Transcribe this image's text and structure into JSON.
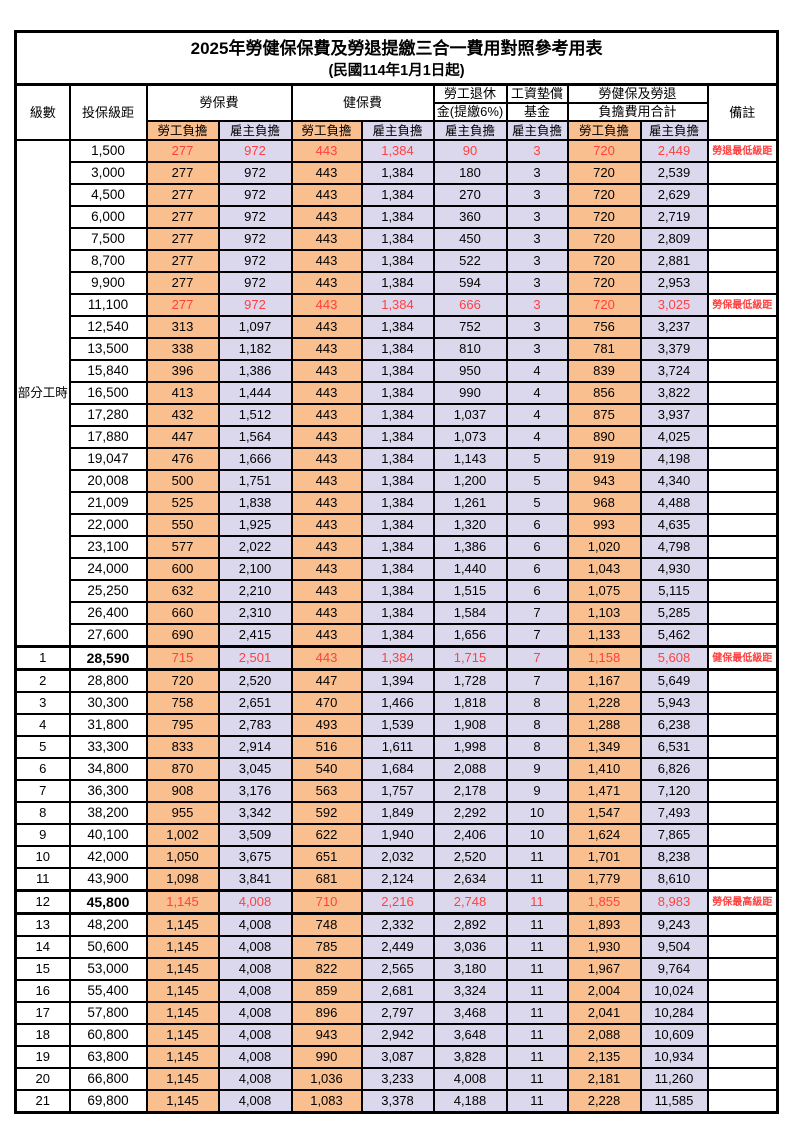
{
  "title": "2025年勞健保保費及勞退提繳三合一費用對照參考用表",
  "subtitle": "(民國114年1月1日起)",
  "header": {
    "level": "級數",
    "grade": "投保級距",
    "labor_ins": "勞保費",
    "health_ins": "健保費",
    "pension_line1": "勞工退休",
    "pension_line2": "金(提繳6%)",
    "wage_fund_line1": "工資墊償",
    "wage_fund_line2": "基金",
    "total_line1": "勞健保及勞退",
    "total_line2": "負擔費用合計",
    "note": "備註",
    "employee": "勞工負擔",
    "employer": "雇主負擔"
  },
  "colors": {
    "employee_bg": "#FABF8F",
    "employer_bg": "#DBD8EE",
    "highlight_text": "#FF4040",
    "note_text": "#FF4040",
    "border": "#000000"
  },
  "part_time_label": "部分工時",
  "rows": [
    {
      "level": "部分工時",
      "level_rowspan": 23,
      "grade": "1,500",
      "cells": [
        "277",
        "972",
        "443",
        "1,384",
        "90",
        "3",
        "720",
        "2,449"
      ],
      "note": "勞退最低級距",
      "red": true
    },
    {
      "grade": "3,000",
      "cells": [
        "277",
        "972",
        "443",
        "1,384",
        "180",
        "3",
        "720",
        "2,539"
      ],
      "note": ""
    },
    {
      "grade": "4,500",
      "cells": [
        "277",
        "972",
        "443",
        "1,384",
        "270",
        "3",
        "720",
        "2,629"
      ],
      "note": ""
    },
    {
      "grade": "6,000",
      "cells": [
        "277",
        "972",
        "443",
        "1,384",
        "360",
        "3",
        "720",
        "2,719"
      ],
      "note": ""
    },
    {
      "grade": "7,500",
      "cells": [
        "277",
        "972",
        "443",
        "1,384",
        "450",
        "3",
        "720",
        "2,809"
      ],
      "note": ""
    },
    {
      "grade": "8,700",
      "cells": [
        "277",
        "972",
        "443",
        "1,384",
        "522",
        "3",
        "720",
        "2,881"
      ],
      "note": ""
    },
    {
      "grade": "9,900",
      "cells": [
        "277",
        "972",
        "443",
        "1,384",
        "594",
        "3",
        "720",
        "2,953"
      ],
      "note": ""
    },
    {
      "grade": "11,100",
      "cells": [
        "277",
        "972",
        "443",
        "1,384",
        "666",
        "3",
        "720",
        "3,025"
      ],
      "note": "勞保最低級距",
      "red": true
    },
    {
      "grade": "12,540",
      "cells": [
        "313",
        "1,097",
        "443",
        "1,384",
        "752",
        "3",
        "756",
        "3,237"
      ],
      "note": ""
    },
    {
      "grade": "13,500",
      "cells": [
        "338",
        "1,182",
        "443",
        "1,384",
        "810",
        "3",
        "781",
        "3,379"
      ],
      "note": ""
    },
    {
      "grade": "15,840",
      "cells": [
        "396",
        "1,386",
        "443",
        "1,384",
        "950",
        "4",
        "839",
        "3,724"
      ],
      "note": ""
    },
    {
      "grade": "16,500",
      "cells": [
        "413",
        "1,444",
        "443",
        "1,384",
        "990",
        "4",
        "856",
        "3,822"
      ],
      "note": ""
    },
    {
      "grade": "17,280",
      "cells": [
        "432",
        "1,512",
        "443",
        "1,384",
        "1,037",
        "4",
        "875",
        "3,937"
      ],
      "note": ""
    },
    {
      "grade": "17,880",
      "cells": [
        "447",
        "1,564",
        "443",
        "1,384",
        "1,073",
        "4",
        "890",
        "4,025"
      ],
      "note": ""
    },
    {
      "grade": "19,047",
      "cells": [
        "476",
        "1,666",
        "443",
        "1,384",
        "1,143",
        "5",
        "919",
        "4,198"
      ],
      "note": ""
    },
    {
      "grade": "20,008",
      "cells": [
        "500",
        "1,751",
        "443",
        "1,384",
        "1,200",
        "5",
        "943",
        "4,340"
      ],
      "note": ""
    },
    {
      "grade": "21,009",
      "cells": [
        "525",
        "1,838",
        "443",
        "1,384",
        "1,261",
        "5",
        "968",
        "4,488"
      ],
      "note": ""
    },
    {
      "grade": "22,000",
      "cells": [
        "550",
        "1,925",
        "443",
        "1,384",
        "1,320",
        "6",
        "993",
        "4,635"
      ],
      "note": ""
    },
    {
      "grade": "23,100",
      "cells": [
        "577",
        "2,022",
        "443",
        "1,384",
        "1,386",
        "6",
        "1,020",
        "4,798"
      ],
      "note": ""
    },
    {
      "grade": "24,000",
      "cells": [
        "600",
        "2,100",
        "443",
        "1,384",
        "1,440",
        "6",
        "1,043",
        "4,930"
      ],
      "note": ""
    },
    {
      "grade": "25,250",
      "cells": [
        "632",
        "2,210",
        "443",
        "1,384",
        "1,515",
        "6",
        "1,075",
        "5,115"
      ],
      "note": ""
    },
    {
      "grade": "26,400",
      "cells": [
        "660",
        "2,310",
        "443",
        "1,384",
        "1,584",
        "7",
        "1,103",
        "5,285"
      ],
      "note": ""
    },
    {
      "grade": "27,600",
      "cells": [
        "690",
        "2,415",
        "443",
        "1,384",
        "1,656",
        "7",
        "1,133",
        "5,462"
      ],
      "note": ""
    },
    {
      "level": "1",
      "grade": "28,590",
      "cells": [
        "715",
        "2,501",
        "443",
        "1,384",
        "1,715",
        "7",
        "1,158",
        "5,608"
      ],
      "note": "健保最低級距",
      "red": true,
      "thick": true,
      "bold_grade": true
    },
    {
      "level": "2",
      "grade": "28,800",
      "cells": [
        "720",
        "2,520",
        "447",
        "1,394",
        "1,728",
        "7",
        "1,167",
        "5,649"
      ],
      "note": ""
    },
    {
      "level": "3",
      "grade": "30,300",
      "cells": [
        "758",
        "2,651",
        "470",
        "1,466",
        "1,818",
        "8",
        "1,228",
        "5,943"
      ],
      "note": ""
    },
    {
      "level": "4",
      "grade": "31,800",
      "cells": [
        "795",
        "2,783",
        "493",
        "1,539",
        "1,908",
        "8",
        "1,288",
        "6,238"
      ],
      "note": ""
    },
    {
      "level": "5",
      "grade": "33,300",
      "cells": [
        "833",
        "2,914",
        "516",
        "1,611",
        "1,998",
        "8",
        "1,349",
        "6,531"
      ],
      "note": ""
    },
    {
      "level": "6",
      "grade": "34,800",
      "cells": [
        "870",
        "3,045",
        "540",
        "1,684",
        "2,088",
        "9",
        "1,410",
        "6,826"
      ],
      "note": ""
    },
    {
      "level": "7",
      "grade": "36,300",
      "cells": [
        "908",
        "3,176",
        "563",
        "1,757",
        "2,178",
        "9",
        "1,471",
        "7,120"
      ],
      "note": ""
    },
    {
      "level": "8",
      "grade": "38,200",
      "cells": [
        "955",
        "3,342",
        "592",
        "1,849",
        "2,292",
        "10",
        "1,547",
        "7,493"
      ],
      "note": ""
    },
    {
      "level": "9",
      "grade": "40,100",
      "cells": [
        "1,002",
        "3,509",
        "622",
        "1,940",
        "2,406",
        "10",
        "1,624",
        "7,865"
      ],
      "note": ""
    },
    {
      "level": "10",
      "grade": "42,000",
      "cells": [
        "1,050",
        "3,675",
        "651",
        "2,032",
        "2,520",
        "11",
        "1,701",
        "8,238"
      ],
      "note": ""
    },
    {
      "level": "11",
      "grade": "43,900",
      "cells": [
        "1,098",
        "3,841",
        "681",
        "2,124",
        "2,634",
        "11",
        "1,779",
        "8,610"
      ],
      "note": ""
    },
    {
      "level": "12",
      "grade": "45,800",
      "cells": [
        "1,145",
        "4,008",
        "710",
        "2,216",
        "2,748",
        "11",
        "1,855",
        "8,983"
      ],
      "note": "勞保最高級距",
      "red": true,
      "thick": true,
      "bold_grade": true
    },
    {
      "level": "13",
      "grade": "48,200",
      "cells": [
        "1,145",
        "4,008",
        "748",
        "2,332",
        "2,892",
        "11",
        "1,893",
        "9,243"
      ],
      "note": ""
    },
    {
      "level": "14",
      "grade": "50,600",
      "cells": [
        "1,145",
        "4,008",
        "785",
        "2,449",
        "3,036",
        "11",
        "1,930",
        "9,504"
      ],
      "note": ""
    },
    {
      "level": "15",
      "grade": "53,000",
      "cells": [
        "1,145",
        "4,008",
        "822",
        "2,565",
        "3,180",
        "11",
        "1,967",
        "9,764"
      ],
      "note": ""
    },
    {
      "level": "16",
      "grade": "55,400",
      "cells": [
        "1,145",
        "4,008",
        "859",
        "2,681",
        "3,324",
        "11",
        "2,004",
        "10,024"
      ],
      "note": ""
    },
    {
      "level": "17",
      "grade": "57,800",
      "cells": [
        "1,145",
        "4,008",
        "896",
        "2,797",
        "3,468",
        "11",
        "2,041",
        "10,284"
      ],
      "note": ""
    },
    {
      "level": "18",
      "grade": "60,800",
      "cells": [
        "1,145",
        "4,008",
        "943",
        "2,942",
        "3,648",
        "11",
        "2,088",
        "10,609"
      ],
      "note": ""
    },
    {
      "level": "19",
      "grade": "63,800",
      "cells": [
        "1,145",
        "4,008",
        "990",
        "3,087",
        "3,828",
        "11",
        "2,135",
        "10,934"
      ],
      "note": ""
    },
    {
      "level": "20",
      "grade": "66,800",
      "cells": [
        "1,145",
        "4,008",
        "1,036",
        "3,233",
        "4,008",
        "11",
        "2,181",
        "11,260"
      ],
      "note": ""
    },
    {
      "level": "21",
      "grade": "69,800",
      "cells": [
        "1,145",
        "4,008",
        "1,083",
        "3,378",
        "4,188",
        "11",
        "2,228",
        "11,585"
      ],
      "note": ""
    }
  ]
}
